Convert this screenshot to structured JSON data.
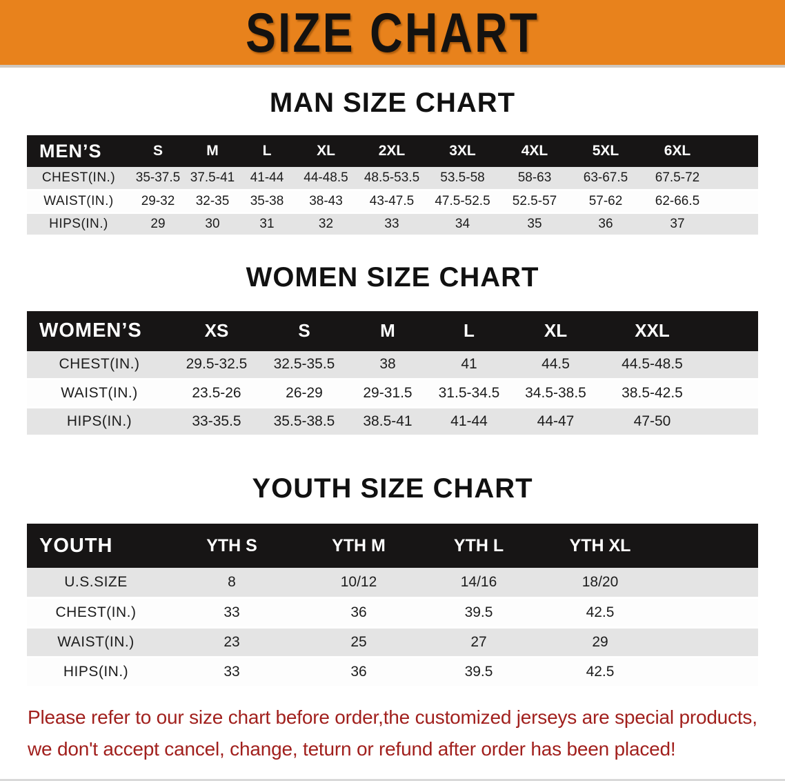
{
  "banner": {
    "title": "SIZE CHART"
  },
  "colors": {
    "banner_bg": "#e8821c",
    "table_header_bg": "#171515",
    "row_stripe": "#e4e4e4",
    "disclaimer_text": "#a1201d"
  },
  "sections": {
    "men": {
      "heading": "MAN SIZE CHART",
      "corner": "MEN’S",
      "sizes": [
        "S",
        "M",
        "L",
        "XL",
        "2XL",
        "3XL",
        "4XL",
        "5XL",
        "6XL"
      ],
      "rows": [
        {
          "label": "CHEST(IN.)",
          "values": [
            "35-37.5",
            "37.5-41",
            "41-44",
            "44-48.5",
            "48.5-53.5",
            "53.5-58",
            "58-63",
            "63-67.5",
            "67.5-72"
          ]
        },
        {
          "label": "WAIST(IN.)",
          "values": [
            "29-32",
            "32-35",
            "35-38",
            "38-43",
            "43-47.5",
            "47.5-52.5",
            "52.5-57",
            "57-62",
            "62-66.5"
          ]
        },
        {
          "label": "HIPS(IN.)",
          "values": [
            "29",
            "30",
            "31",
            "32",
            "33",
            "34",
            "35",
            "36",
            "37"
          ]
        }
      ]
    },
    "women": {
      "heading": "WOMEN SIZE CHART",
      "corner": "WOMEN’S",
      "sizes": [
        "XS",
        "S",
        "M",
        "L",
        "XL",
        "XXL"
      ],
      "rows": [
        {
          "label": "CHEST(IN.)",
          "values": [
            "29.5-32.5",
            "32.5-35.5",
            "38",
            "41",
            "44.5",
            "44.5-48.5"
          ]
        },
        {
          "label": "WAIST(IN.)",
          "values": [
            "23.5-26",
            "26-29",
            "29-31.5",
            "31.5-34.5",
            "34.5-38.5",
            "38.5-42.5"
          ]
        },
        {
          "label": "HIPS(IN.)",
          "values": [
            "33-35.5",
            "35.5-38.5",
            "38.5-41",
            "41-44",
            "44-47",
            "47-50"
          ]
        }
      ]
    },
    "youth": {
      "heading": "YOUTH SIZE CHART",
      "corner": "YOUTH",
      "sizes": [
        "YTH S",
        "YTH M",
        "YTH L",
        "YTH XL"
      ],
      "rows": [
        {
          "label": "U.S.SIZE",
          "values": [
            "8",
            "10/12",
            "14/16",
            "18/20"
          ]
        },
        {
          "label": "CHEST(IN.)",
          "values": [
            "33",
            "36",
            "39.5",
            "42.5"
          ]
        },
        {
          "label": "WAIST(IN.)",
          "values": [
            "23",
            "25",
            "27",
            "29"
          ]
        },
        {
          "label": "HIPS(IN.)",
          "values": [
            "33",
            "36",
            "39.5",
            "42.5"
          ]
        }
      ]
    }
  },
  "disclaimer": {
    "line1": "Please refer to our size chart before order,the customized jerseys are special products,",
    "line2": "we don't accept cancel, change, teturn or refund after order has been placed!"
  }
}
